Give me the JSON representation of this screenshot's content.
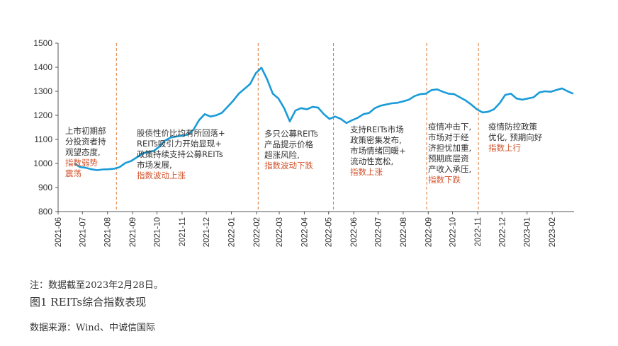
{
  "chart_data": {
    "type": "line",
    "ylim": [
      800,
      1500
    ],
    "yticks": [
      800,
      900,
      1000,
      1100,
      1200,
      1300,
      1400,
      1500
    ],
    "xlim": [
      "2021-06-01",
      "2023-02-28"
    ],
    "xticks": [
      "2021-06",
      "2021-07",
      "2021-08",
      "2021-09",
      "2021-10",
      "2021-11",
      "2021-12",
      "2022-01",
      "2022-02",
      "2022-03",
      "2022-04",
      "2022-05",
      "2022-06",
      "2022-07",
      "2022-08",
      "2022-09",
      "2022-10",
      "2022-11",
      "2022-12",
      "2023-01",
      "2023-02"
    ],
    "grid": false,
    "line_color": "#1a9bd7",
    "divider_color": "#e07b39",
    "series": [
      {
        "points": [
          [
            "2021-06-21",
            1000
          ],
          [
            "2021-06-28",
            985
          ],
          [
            "2021-07-05",
            982
          ],
          [
            "2021-07-12",
            976
          ],
          [
            "2021-07-19",
            972
          ],
          [
            "2021-07-26",
            975
          ],
          [
            "2021-08-02",
            976
          ],
          [
            "2021-08-09",
            978
          ],
          [
            "2021-08-16",
            985
          ],
          [
            "2021-08-23",
            1002
          ],
          [
            "2021-08-30",
            1010
          ],
          [
            "2021-09-06",
            1025
          ],
          [
            "2021-09-13",
            1040
          ],
          [
            "2021-09-20",
            1048
          ],
          [
            "2021-09-27",
            1052
          ],
          [
            "2021-10-04",
            1070
          ],
          [
            "2021-10-11",
            1095
          ],
          [
            "2021-10-18",
            1108
          ],
          [
            "2021-10-25",
            1112
          ],
          [
            "2021-11-01",
            1115
          ],
          [
            "2021-11-08",
            1120
          ],
          [
            "2021-11-15",
            1140
          ],
          [
            "2021-11-22",
            1180
          ],
          [
            "2021-11-29",
            1205
          ],
          [
            "2021-12-06",
            1195
          ],
          [
            "2021-12-13",
            1200
          ],
          [
            "2021-12-20",
            1210
          ],
          [
            "2021-12-27",
            1235
          ],
          [
            "2022-01-03",
            1260
          ],
          [
            "2022-01-10",
            1290
          ],
          [
            "2022-01-17",
            1310
          ],
          [
            "2022-01-24",
            1330
          ],
          [
            "2022-01-31",
            1375
          ],
          [
            "2022-02-07",
            1398
          ],
          [
            "2022-02-14",
            1350
          ],
          [
            "2022-02-21",
            1290
          ],
          [
            "2022-02-28",
            1270
          ],
          [
            "2022-03-07",
            1230
          ],
          [
            "2022-03-14",
            1175
          ],
          [
            "2022-03-21",
            1220
          ],
          [
            "2022-03-28",
            1230
          ],
          [
            "2022-04-04",
            1225
          ],
          [
            "2022-04-11",
            1235
          ],
          [
            "2022-04-18",
            1232
          ],
          [
            "2022-04-25",
            1205
          ],
          [
            "2022-05-02",
            1185
          ],
          [
            "2022-05-09",
            1195
          ],
          [
            "2022-05-16",
            1185
          ],
          [
            "2022-05-23",
            1168
          ],
          [
            "2022-05-30",
            1180
          ],
          [
            "2022-06-06",
            1190
          ],
          [
            "2022-06-13",
            1205
          ],
          [
            "2022-06-20",
            1210
          ],
          [
            "2022-06-27",
            1230
          ],
          [
            "2022-07-04",
            1240
          ],
          [
            "2022-07-11",
            1245
          ],
          [
            "2022-07-18",
            1250
          ],
          [
            "2022-07-25",
            1252
          ],
          [
            "2022-08-01",
            1258
          ],
          [
            "2022-08-08",
            1265
          ],
          [
            "2022-08-15",
            1280
          ],
          [
            "2022-08-22",
            1288
          ],
          [
            "2022-08-29",
            1290
          ],
          [
            "2022-09-05",
            1305
          ],
          [
            "2022-09-12",
            1308
          ],
          [
            "2022-09-19",
            1298
          ],
          [
            "2022-09-26",
            1290
          ],
          [
            "2022-10-03",
            1288
          ],
          [
            "2022-10-10",
            1275
          ],
          [
            "2022-10-17",
            1262
          ],
          [
            "2022-10-24",
            1245
          ],
          [
            "2022-10-31",
            1225
          ],
          [
            "2022-11-07",
            1212
          ],
          [
            "2022-11-14",
            1215
          ],
          [
            "2022-11-21",
            1225
          ],
          [
            "2022-11-28",
            1250
          ],
          [
            "2022-12-05",
            1285
          ],
          [
            "2022-12-12",
            1290
          ],
          [
            "2022-12-19",
            1270
          ],
          [
            "2022-12-26",
            1265
          ],
          [
            "2023-01-02",
            1270
          ],
          [
            "2023-01-09",
            1275
          ],
          [
            "2023-01-16",
            1295
          ],
          [
            "2023-01-23",
            1300
          ],
          [
            "2023-01-30",
            1298
          ],
          [
            "2023-02-06",
            1305
          ],
          [
            "2023-02-13",
            1312
          ],
          [
            "2023-02-20",
            1300
          ],
          [
            "2023-02-27",
            1290
          ]
        ]
      }
    ],
    "dividers": [
      "2021-08-12",
      "2022-02-03",
      "2022-05-07",
      "2022-08-30",
      "2022-11-02"
    ],
    "annotations": [
      {
        "lines": [
          "上市初期部",
          "分投资者持",
          "观望态度,"
        ],
        "highlight": [
          "指数弱势",
          "震荡"
        ]
      },
      {
        "lines": [
          "股债性价比均有所回落+",
          "REITs吸引力开始显现+",
          "政策持续支持公募REITs",
          "市场发展,"
        ],
        "highlight": [
          "指数波动上涨"
        ]
      },
      {
        "lines": [
          "多只公募REITs",
          "产品提示价格",
          "超涨风险,"
        ],
        "highlight": [
          "指数波动下跌"
        ]
      },
      {
        "lines": [
          "支持REITs市场",
          "政策密集发布,",
          "市场情绪回暖+",
          "流动性宽松,"
        ],
        "highlight": [
          "指数上涨"
        ]
      },
      {
        "lines": [
          "疫情冲击下,",
          "市场对于经",
          "济担忧加重,",
          "预期底层资",
          "产收入承压,"
        ],
        "highlight": [
          "指数下跌"
        ]
      },
      {
        "lines": [
          "疫情防控政策",
          "优化, 预期向好"
        ],
        "highlight": [
          "指数上行"
        ]
      }
    ]
  },
  "footer": {
    "note": "注：数据截至2023年2月28日。",
    "title": "图1 REITs综合指数表现",
    "source": "数据来源：Wind、中诚信国际"
  }
}
